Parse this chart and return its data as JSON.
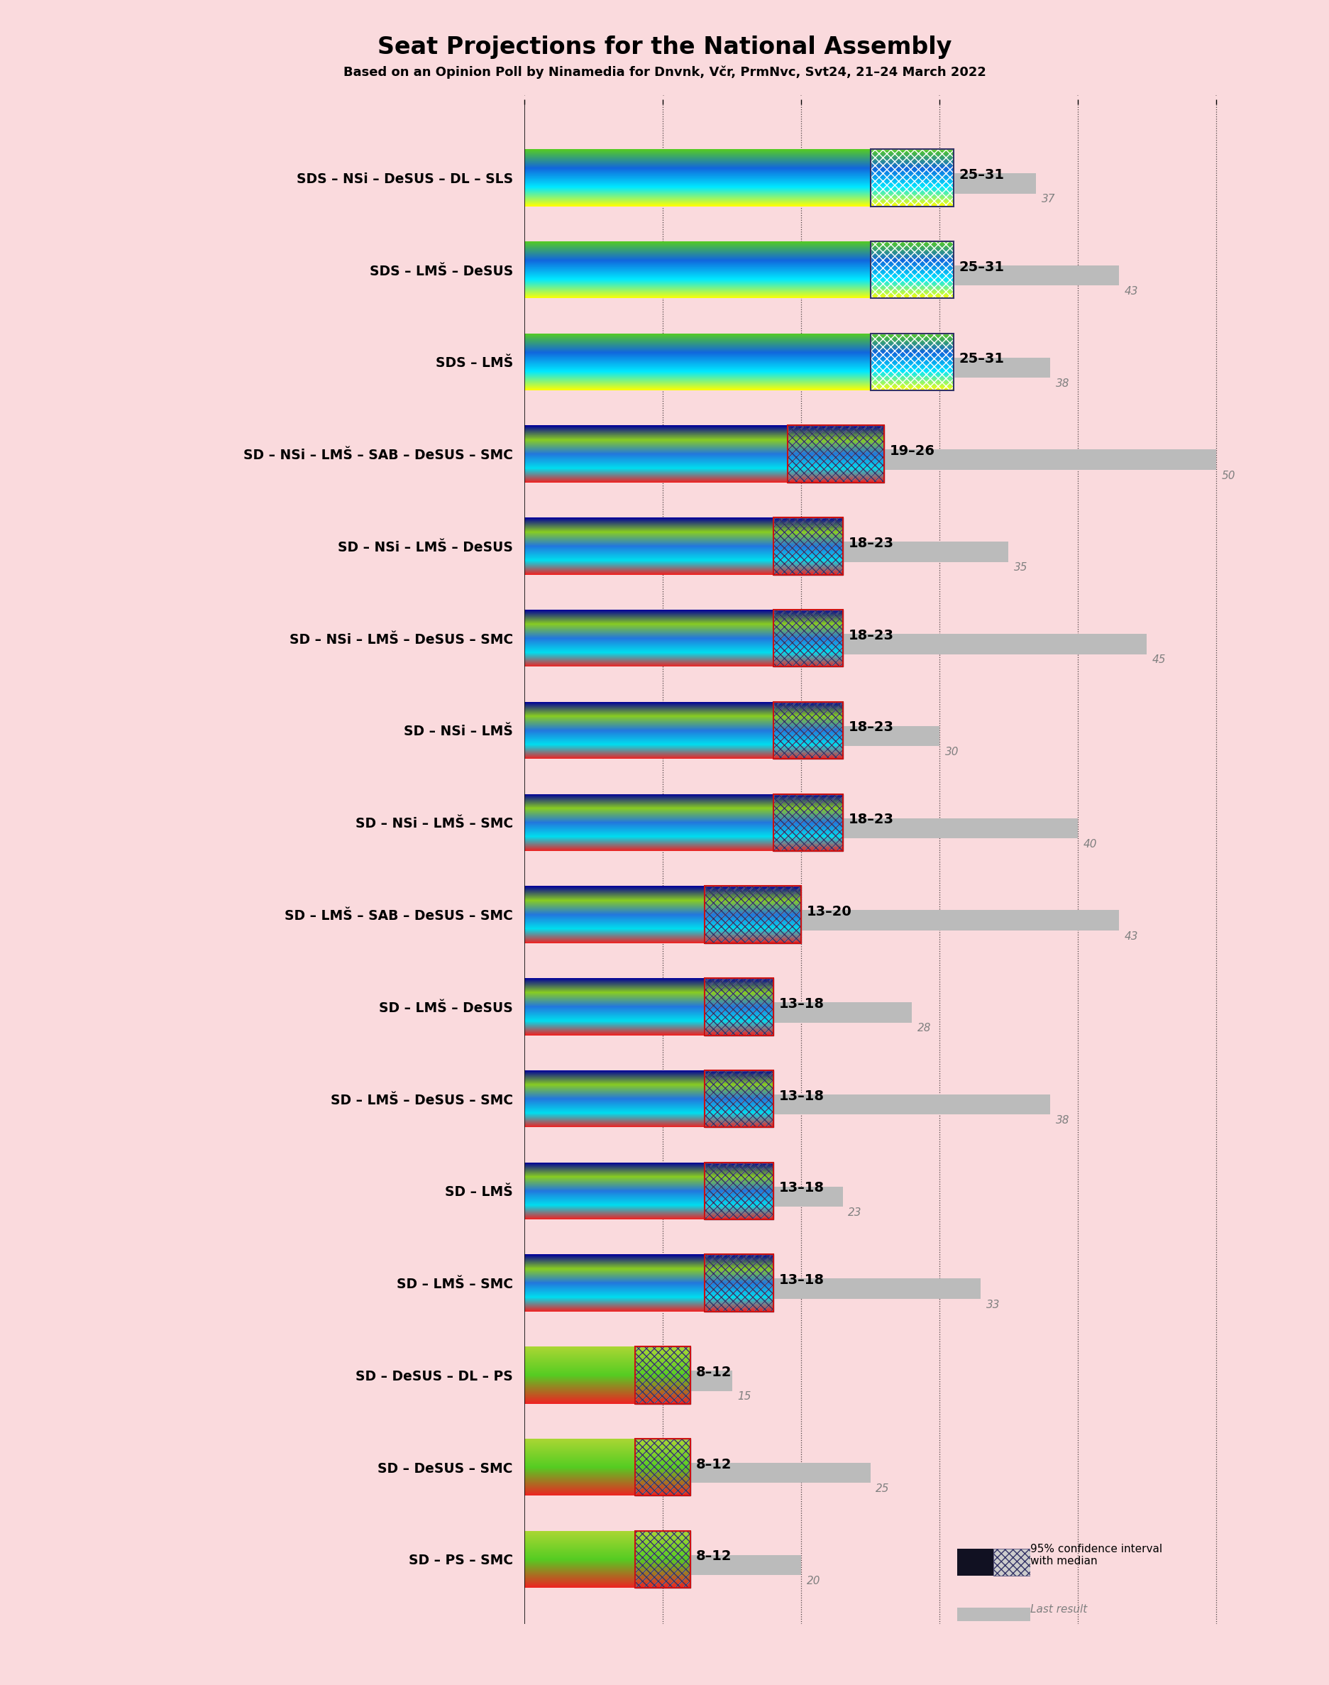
{
  "title": "Seat Projections for the National Assembly",
  "subtitle": "Based on an Opinion Poll by Ninamedia for Dnvnk, Včr, PrmNvc, Svt24, 21–24 March 2022",
  "background_color": "#fadadd",
  "coalitions": [
    {
      "label": "SDS – NSi – DeSUS – DL – SLS",
      "range_low": 25,
      "range_high": 31,
      "last": 37,
      "type": "SDS"
    },
    {
      "label": "SDS – LMŠ – DeSUS",
      "range_low": 25,
      "range_high": 31,
      "last": 43,
      "type": "SDS"
    },
    {
      "label": "SDS – LMŠ",
      "range_low": 25,
      "range_high": 31,
      "last": 38,
      "type": "SDS"
    },
    {
      "label": "SD – NSi – LMŠ – SAB – DeSUS – SMC",
      "range_low": 19,
      "range_high": 26,
      "last": 50,
      "type": "SD_NSi"
    },
    {
      "label": "SD – NSi – LMŠ – DeSUS",
      "range_low": 18,
      "range_high": 23,
      "last": 35,
      "type": "SD_NSi"
    },
    {
      "label": "SD – NSi – LMŠ – DeSUS – SMC",
      "range_low": 18,
      "range_high": 23,
      "last": 45,
      "type": "SD_NSi"
    },
    {
      "label": "SD – NSi – LMŠ",
      "range_low": 18,
      "range_high": 23,
      "last": 30,
      "type": "SD_NSi"
    },
    {
      "label": "SD – NSi – LMŠ – SMC",
      "range_low": 18,
      "range_high": 23,
      "last": 40,
      "type": "SD_NSi"
    },
    {
      "label": "SD – LMŠ – SAB – DeSUS – SMC",
      "range_low": 13,
      "range_high": 20,
      "last": 43,
      "type": "SD_LMS"
    },
    {
      "label": "SD – LMŠ – DeSUS",
      "range_low": 13,
      "range_high": 18,
      "last": 28,
      "type": "SD_LMS"
    },
    {
      "label": "SD – LMŠ – DeSUS – SMC",
      "range_low": 13,
      "range_high": 18,
      "last": 38,
      "type": "SD_LMS"
    },
    {
      "label": "SD – LMŠ",
      "range_low": 13,
      "range_high": 18,
      "last": 23,
      "type": "SD_LMS"
    },
    {
      "label": "SD – LMŠ – SMC",
      "range_low": 13,
      "range_high": 18,
      "last": 33,
      "type": "SD_LMS"
    },
    {
      "label": "SD – DeSUS – DL – PS",
      "range_low": 8,
      "range_high": 12,
      "last": 15,
      "type": "SD_small"
    },
    {
      "label": "SD – DeSUS – SMC",
      "range_low": 8,
      "range_high": 12,
      "last": 25,
      "type": "SD_small"
    },
    {
      "label": "SD – PS – SMC",
      "range_low": 8,
      "range_high": 12,
      "last": 20,
      "type": "SD_small"
    }
  ],
  "x_max": 55,
  "tick_positions": [
    0,
    10,
    20,
    30,
    40,
    50
  ],
  "sds_colors": [
    "#ffff00",
    "#00e5ff",
    "#0066cc",
    "#66cc00"
  ],
  "sd_nsi_colors": [
    "#ee2222",
    "#00ccee",
    "#0055cc",
    "#66cc00",
    "#000088"
  ],
  "sd_lms_colors": [
    "#ee2222",
    "#00ccee",
    "#0055cc",
    "#66cc00",
    "#000088"
  ],
  "sd_small_colors": [
    "#ee2222",
    "#66cc00",
    "#66cc00"
  ],
  "gray_color": "#bbbbbb",
  "hatch_pattern": "///",
  "hatch_pattern2": "xxx"
}
